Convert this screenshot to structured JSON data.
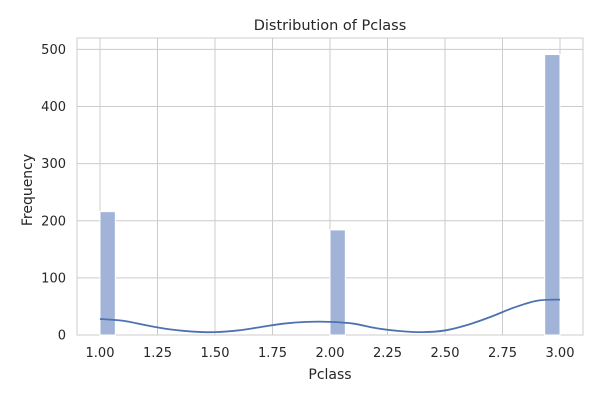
{
  "chart_data": {
    "type": "bar",
    "title": "Distribution of Pclass",
    "xlabel": "Pclass",
    "ylabel": "Frequency",
    "xlim": [
      0.9,
      3.1
    ],
    "ylim": [
      0,
      520
    ],
    "xticks": [
      1.0,
      1.25,
      1.5,
      1.75,
      2.0,
      2.25,
      2.5,
      2.75,
      3.0
    ],
    "xtick_labels": [
      "1.00",
      "1.25",
      "1.50",
      "1.75",
      "2.00",
      "2.25",
      "2.50",
      "2.75",
      "3.00"
    ],
    "yticks": [
      0,
      100,
      200,
      300,
      400,
      500
    ],
    "ytick_labels": [
      "0",
      "100",
      "200",
      "300",
      "400",
      "500"
    ],
    "bin_width": 0.0667,
    "bars": [
      {
        "x_start": 1.0,
        "x_end": 1.0667,
        "value": 216
      },
      {
        "x_start": 2.0,
        "x_end": 2.0667,
        "value": 184
      },
      {
        "x_start": 2.9333,
        "x_end": 3.0,
        "value": 491
      }
    ],
    "kde": {
      "name": "density curve",
      "x": [
        1.0,
        1.1,
        1.2,
        1.3,
        1.4,
        1.5,
        1.6,
        1.7,
        1.8,
        1.9,
        2.0,
        2.1,
        2.2,
        2.3,
        2.4,
        2.5,
        2.6,
        2.7,
        2.8,
        2.9,
        3.0
      ],
      "y": [
        28,
        25,
        17,
        10,
        6,
        5,
        8,
        14,
        20,
        23,
        23,
        20,
        12,
        7,
        5,
        8,
        18,
        32,
        48,
        60,
        62
      ]
    },
    "grid": true,
    "colors": {
      "bar_fill": "#a1b4d8",
      "bar_stroke": "#ffffff",
      "kde_line": "#4c72b0",
      "grid": "#cccccc",
      "text": "#262626"
    }
  }
}
